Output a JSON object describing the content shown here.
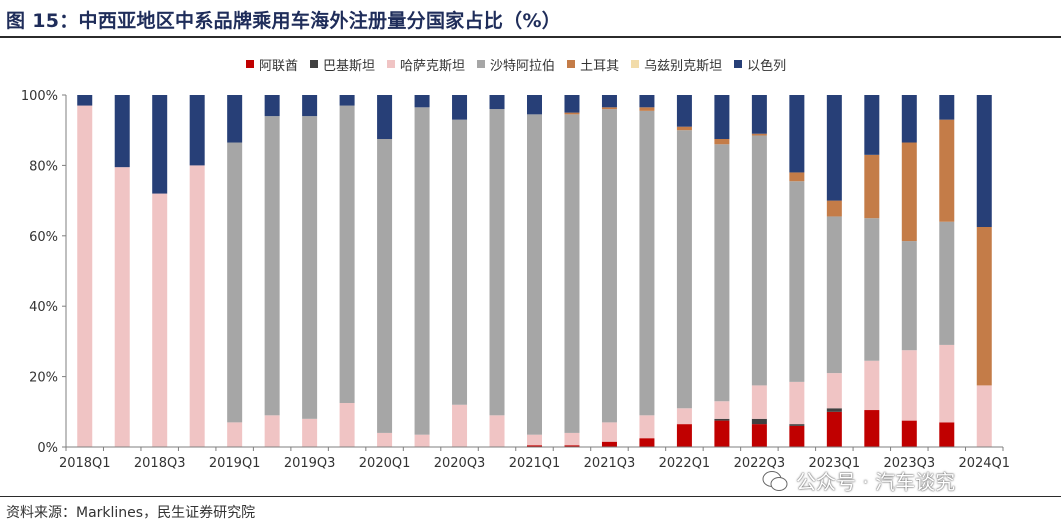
{
  "title": "图 15：中西亚地区中系品牌乘用车海外注册量分国家占比（%）",
  "source": "资料来源：Marklines，民生证券研究院",
  "watermark": "公众号 · 汽车谈究",
  "chart_data": {
    "type": "bar",
    "stacked": true,
    "categories": [
      "2018Q1",
      "2018Q2",
      "2018Q3",
      "2018Q4",
      "2019Q1",
      "2019Q2",
      "2019Q3",
      "2019Q4",
      "2020Q1",
      "2020Q2",
      "2020Q3",
      "2020Q4",
      "2021Q1",
      "2021Q2",
      "2021Q3",
      "2021Q4",
      "2022Q1",
      "2022Q2",
      "2022Q3",
      "2022Q4",
      "2023Q1",
      "2023Q2",
      "2023Q3",
      "2023Q4",
      "2024Q1"
    ],
    "tick_labels": [
      "2018Q1",
      "",
      "2018Q3",
      "",
      "2019Q1",
      "",
      "2019Q3",
      "",
      "2020Q1",
      "",
      "2020Q3",
      "",
      "2021Q1",
      "",
      "2021Q3",
      "",
      "2022Q1",
      "",
      "2022Q3",
      "",
      "2023Q1",
      "",
      "2023Q3",
      "",
      "2024Q1"
    ],
    "ylim": [
      0,
      100
    ],
    "yticks": [
      "0%",
      "20%",
      "40%",
      "60%",
      "80%",
      "100%"
    ],
    "grid": false,
    "legend_position": "top",
    "series": [
      {
        "name": "阿联酋",
        "color": "#c00000",
        "values": [
          0,
          0,
          0,
          0,
          0,
          0,
          0,
          0,
          0,
          0,
          0,
          0,
          0.5,
          0.5,
          1.5,
          2.5,
          6.5,
          7.5,
          6.5,
          6,
          10,
          10.5,
          7.5,
          7,
          0
        ]
      },
      {
        "name": "巴基斯坦",
        "color": "#404040",
        "values": [
          0,
          0,
          0,
          0,
          0,
          0,
          0,
          0,
          0,
          0,
          0,
          0,
          0,
          0,
          0,
          0,
          0,
          0.5,
          1.5,
          0.5,
          1,
          0,
          0,
          0,
          0
        ]
      },
      {
        "name": "哈萨克斯坦",
        "color": "#f0c4c4",
        "values": [
          97,
          79.5,
          72,
          80,
          7,
          9,
          8,
          12.5,
          4,
          3.5,
          12,
          9,
          3,
          3.5,
          5.5,
          6.5,
          4.5,
          5,
          9.5,
          12,
          10,
          14,
          20,
          22,
          17.5
        ]
      },
      {
        "name": "沙特阿拉伯",
        "color": "#a6a6a6",
        "values": [
          0,
          0,
          0,
          0,
          79.5,
          85,
          86,
          84.5,
          83.5,
          93,
          81,
          87,
          91,
          90.5,
          89,
          86.5,
          79,
          73,
          71,
          57,
          44.5,
          40.5,
          31,
          35,
          0
        ]
      },
      {
        "name": "土耳其",
        "color": "#c47c48",
        "values": [
          0,
          0,
          0,
          0,
          0,
          0,
          0,
          0,
          0,
          0,
          0,
          0,
          0,
          0.5,
          0.5,
          1,
          1,
          1.5,
          0.5,
          2.5,
          4.5,
          18,
          28,
          29,
          45
        ]
      },
      {
        "name": "乌兹别克斯坦",
        "color": "#f2dcaa",
        "values": [
          0,
          0,
          0,
          0,
          0,
          0,
          0,
          0,
          0,
          0,
          0,
          0,
          0,
          0,
          0,
          0,
          0,
          0,
          0,
          0,
          0,
          0,
          0,
          0,
          0
        ]
      },
      {
        "name": "以色列",
        "color": "#273f77",
        "values": [
          3,
          20.5,
          28,
          20,
          13.5,
          6,
          6,
          3,
          12.5,
          3.5,
          7,
          4,
          5.5,
          5,
          3.5,
          3.5,
          9,
          12.5,
          11,
          22,
          30,
          17,
          13.5,
          7,
          37.5
        ]
      }
    ]
  }
}
